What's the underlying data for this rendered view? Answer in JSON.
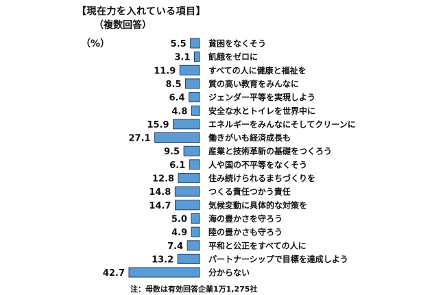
{
  "header": {
    "title": "【現在力を入れている項目】",
    "subtitle": "（複数回答）",
    "unit": "（%）"
  },
  "footnote": "注：母数は有効回答企業1万1,275社",
  "colors": {
    "bar": "#5b9bd5",
    "bar_border": "#1f3f6b"
  },
  "chart_data": {
    "type": "bar",
    "orientation": "horizontal",
    "title": "【現在力を入れている項目】",
    "subtitle": "（複数回答）",
    "unit": "（%）",
    "categories": [
      "貧困をなくそう",
      "飢餓をゼロに",
      "すべての人に健康と福祉を",
      "質の高い教育をみんなに",
      "ジェンダー平等を実現しよう",
      "安全な水とトイレを世界中に",
      "エネルギーをみんなにそしてクリーンに",
      "働きがいも経済成長も",
      "産業と技術革新の基礎をつくろう",
      "人や国の不平等をなくそう",
      "住み続けられるまちづくりを",
      "つくる責任つかう責任",
      "気候変動に具体的な対策を",
      "海の豊かさを守ろう",
      "陸の豊かさも守ろう",
      "平和と公正をすべての人に",
      "パートナーシップで目標を達成しよう",
      "分からない"
    ],
    "values": [
      5.5,
      3.1,
      11.9,
      8.5,
      6.4,
      4.8,
      15.9,
      27.1,
      9.5,
      6.1,
      12.8,
      14.8,
      14.7,
      5.0,
      4.9,
      7.4,
      13.2,
      42.7
    ],
    "value_labels": [
      "5.5",
      "3.1",
      "11.9",
      "8.5",
      "6.4",
      "4.8",
      "15.9",
      "27.1",
      "9.5",
      "6.1",
      "12.8",
      "14.8",
      "14.7",
      "5.0",
      "4.9",
      "7.4",
      "13.2",
      "42.7"
    ],
    "xlim": [
      0,
      42.7
    ],
    "grid": false,
    "legend": "none"
  }
}
